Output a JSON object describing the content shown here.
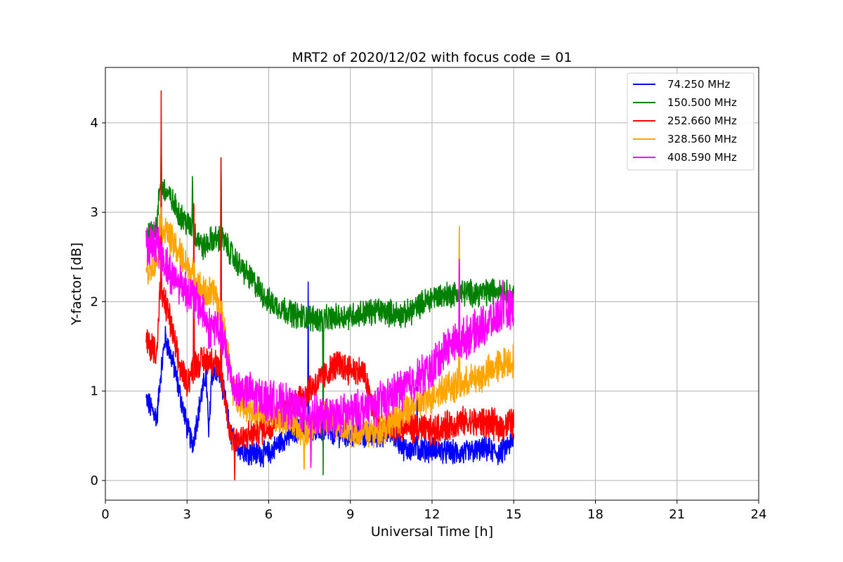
{
  "chart_data": {
    "type": "line",
    "title": "MRT2 of 2020/12/02 with focus code = 01",
    "xlabel": "Universal Time [h]",
    "ylabel": "Y-factor [dB]",
    "xlim": [
      0,
      24
    ],
    "ylim": [
      -0.22,
      4.62
    ],
    "xticks": [
      0,
      3,
      6,
      9,
      12,
      15,
      18,
      21,
      24
    ],
    "yticks": [
      0,
      1,
      2,
      3,
      4
    ],
    "grid": true,
    "legend_position": "top-right",
    "series": [
      {
        "name": " 74.250 MHz",
        "color": "#0000ff",
        "noise": 0.12,
        "points": [
          [
            1.5,
            0.9
          ],
          [
            1.9,
            0.7
          ],
          [
            2.0,
            1.1
          ],
          [
            2.2,
            1.6
          ],
          [
            2.5,
            1.3
          ],
          [
            3.0,
            0.6
          ],
          [
            3.2,
            0.4
          ],
          [
            3.5,
            0.9
          ],
          [
            3.7,
            1.2
          ],
          [
            3.8,
            0.5
          ],
          [
            3.9,
            1.2
          ],
          [
            4.2,
            1.2
          ],
          [
            4.4,
            0.9
          ],
          [
            4.6,
            0.5
          ],
          [
            5.0,
            0.35
          ],
          [
            5.5,
            0.3
          ],
          [
            6.0,
            0.3
          ],
          [
            6.5,
            0.45
          ],
          [
            7.0,
            0.55
          ],
          [
            7.5,
            0.6
          ],
          [
            8.0,
            0.55
          ],
          [
            9.0,
            0.5
          ],
          [
            10.0,
            0.5
          ],
          [
            10.5,
            0.55
          ],
          [
            11.0,
            0.35
          ],
          [
            12.0,
            0.35
          ],
          [
            13.0,
            0.3
          ],
          [
            14.0,
            0.35
          ],
          [
            14.5,
            0.3
          ],
          [
            15.0,
            0.45
          ]
        ],
        "spikes": [
          [
            7.45,
            2.25
          ],
          [
            11.45,
            1.1
          ]
        ]
      },
      {
        "name": "150.500 MHz",
        "color": "#008000",
        "noise": 0.13,
        "points": [
          [
            1.5,
            2.75
          ],
          [
            1.9,
            2.85
          ],
          [
            2.0,
            3.3
          ],
          [
            2.3,
            3.2
          ],
          [
            2.8,
            2.95
          ],
          [
            3.2,
            2.8
          ],
          [
            3.6,
            2.6
          ],
          [
            3.9,
            2.7
          ],
          [
            4.3,
            2.7
          ],
          [
            4.8,
            2.45
          ],
          [
            5.5,
            2.2
          ],
          [
            6.0,
            2.0
          ],
          [
            7.0,
            1.85
          ],
          [
            8.0,
            1.8
          ],
          [
            9.0,
            1.85
          ],
          [
            10.0,
            1.9
          ],
          [
            11.0,
            1.85
          ],
          [
            12.0,
            2.05
          ],
          [
            13.0,
            2.1
          ],
          [
            14.0,
            2.1
          ],
          [
            14.5,
            2.15
          ],
          [
            15.0,
            2.05
          ]
        ],
        "spikes": [
          [
            2.05,
            3.95
          ],
          [
            3.2,
            3.5
          ],
          [
            4.25,
            3.7
          ],
          [
            8.0,
            0.0
          ]
        ]
      },
      {
        "name": "252.660 MHz",
        "color": "#ff0000",
        "noise": 0.15,
        "points": [
          [
            1.5,
            1.55
          ],
          [
            1.9,
            1.45
          ],
          [
            2.0,
            2.1
          ],
          [
            2.3,
            1.9
          ],
          [
            2.7,
            1.3
          ],
          [
            3.0,
            1.1
          ],
          [
            3.3,
            1.3
          ],
          [
            3.7,
            1.35
          ],
          [
            4.0,
            1.35
          ],
          [
            4.3,
            1.1
          ],
          [
            4.6,
            0.5
          ],
          [
            5.0,
            0.45
          ],
          [
            5.5,
            0.55
          ],
          [
            6.0,
            0.6
          ],
          [
            7.0,
            0.9
          ],
          [
            8.0,
            1.15
          ],
          [
            8.5,
            1.3
          ],
          [
            9.0,
            1.25
          ],
          [
            9.5,
            1.2
          ],
          [
            10.0,
            0.6
          ],
          [
            11.0,
            0.6
          ],
          [
            12.0,
            0.55
          ],
          [
            13.0,
            0.65
          ],
          [
            14.0,
            0.65
          ],
          [
            14.5,
            0.6
          ],
          [
            15.0,
            0.65
          ]
        ],
        "spikes": [
          [
            2.05,
            4.4
          ],
          [
            3.25,
            3.65
          ],
          [
            4.25,
            3.85
          ],
          [
            4.75,
            0.0
          ]
        ]
      },
      {
        "name": "328.560 MHz",
        "color": "#ffa500",
        "noise": 0.16,
        "points": [
          [
            1.5,
            2.35
          ],
          [
            1.9,
            2.45
          ],
          [
            2.0,
            2.9
          ],
          [
            2.4,
            2.7
          ],
          [
            2.8,
            2.5
          ],
          [
            3.2,
            2.3
          ],
          [
            3.6,
            2.1
          ],
          [
            4.0,
            2.1
          ],
          [
            4.3,
            1.8
          ],
          [
            4.7,
            1.0
          ],
          [
            5.5,
            0.75
          ],
          [
            6.5,
            0.7
          ],
          [
            7.3,
            0.55
          ],
          [
            8.0,
            0.7
          ],
          [
            9.0,
            0.55
          ],
          [
            10.0,
            0.55
          ],
          [
            11.0,
            0.75
          ],
          [
            12.0,
            0.95
          ],
          [
            12.5,
            1.05
          ],
          [
            13.0,
            1.05
          ],
          [
            14.0,
            1.2
          ],
          [
            14.5,
            1.3
          ],
          [
            15.0,
            1.35
          ]
        ],
        "spikes": [
          [
            13.0,
            3.28
          ],
          [
            7.3,
            0.0
          ]
        ]
      },
      {
        "name": "408.590 MHz",
        "color": "#ff00ff",
        "noise": 0.2,
        "points": [
          [
            1.5,
            2.6
          ],
          [
            1.9,
            2.7
          ],
          [
            2.0,
            2.55
          ],
          [
            2.4,
            2.3
          ],
          [
            2.8,
            2.2
          ],
          [
            3.2,
            2.05
          ],
          [
            3.6,
            1.9
          ],
          [
            3.8,
            1.7
          ],
          [
            4.0,
            1.75
          ],
          [
            4.3,
            1.6
          ],
          [
            4.7,
            1.05
          ],
          [
            5.5,
            0.95
          ],
          [
            6.0,
            0.9
          ],
          [
            7.0,
            0.8
          ],
          [
            8.0,
            0.7
          ],
          [
            9.0,
            0.75
          ],
          [
            10.0,
            0.85
          ],
          [
            11.0,
            1.05
          ],
          [
            12.0,
            1.25
          ],
          [
            12.5,
            1.5
          ],
          [
            13.0,
            1.55
          ],
          [
            14.0,
            1.75
          ],
          [
            14.5,
            1.85
          ],
          [
            15.0,
            1.95
          ]
        ],
        "spikes": [
          [
            13.0,
            2.7
          ],
          [
            14.6,
            2.35
          ],
          [
            7.55,
            0.0
          ]
        ]
      }
    ]
  }
}
